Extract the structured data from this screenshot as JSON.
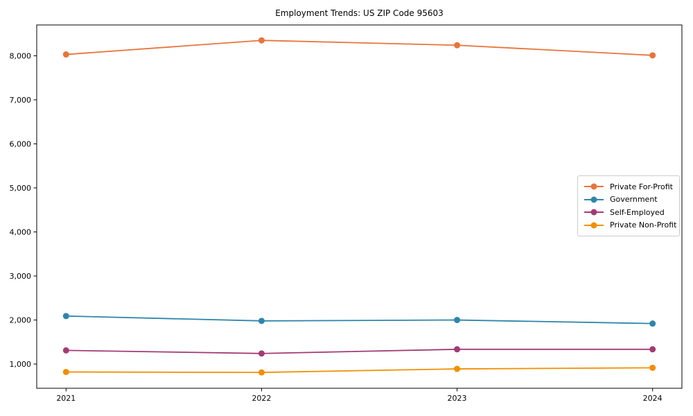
{
  "figure": {
    "background": "#ffffff",
    "text_color": "#000000",
    "spine_color": "#000000",
    "legend_border_color": "#cccccc"
  },
  "chart_data": {
    "type": "line",
    "title": "Employment Trends: US ZIP Code 95603",
    "xlabel": "",
    "ylabel": "",
    "categories": [
      "2021",
      "2022",
      "2023",
      "2024"
    ],
    "x_values": [
      2021,
      2022,
      2023,
      2024
    ],
    "xlim": [
      2020.85,
      2024.15
    ],
    "ylim": [
      450,
      8700
    ],
    "y_ticks": [
      1000,
      2000,
      3000,
      4000,
      5000,
      6000,
      7000,
      8000
    ],
    "y_tick_labels": [
      "1,000",
      "2,000",
      "3,000",
      "4,000",
      "5,000",
      "6,000",
      "7,000",
      "8,000"
    ],
    "grid": false,
    "legend_position": "center right",
    "marker": "circle",
    "series": [
      {
        "name": "Private For-Profit",
        "color": "#E8743B",
        "values": [
          8030,
          8350,
          8240,
          8010
        ]
      },
      {
        "name": "Government",
        "color": "#2E86AB",
        "values": [
          2090,
          1980,
          2000,
          1920
        ]
      },
      {
        "name": "Self-Employed",
        "color": "#A23B72",
        "values": [
          1310,
          1240,
          1335,
          1335
        ]
      },
      {
        "name": "Private Non-Profit",
        "color": "#F18F01",
        "values": [
          820,
          810,
          890,
          915
        ]
      }
    ]
  }
}
